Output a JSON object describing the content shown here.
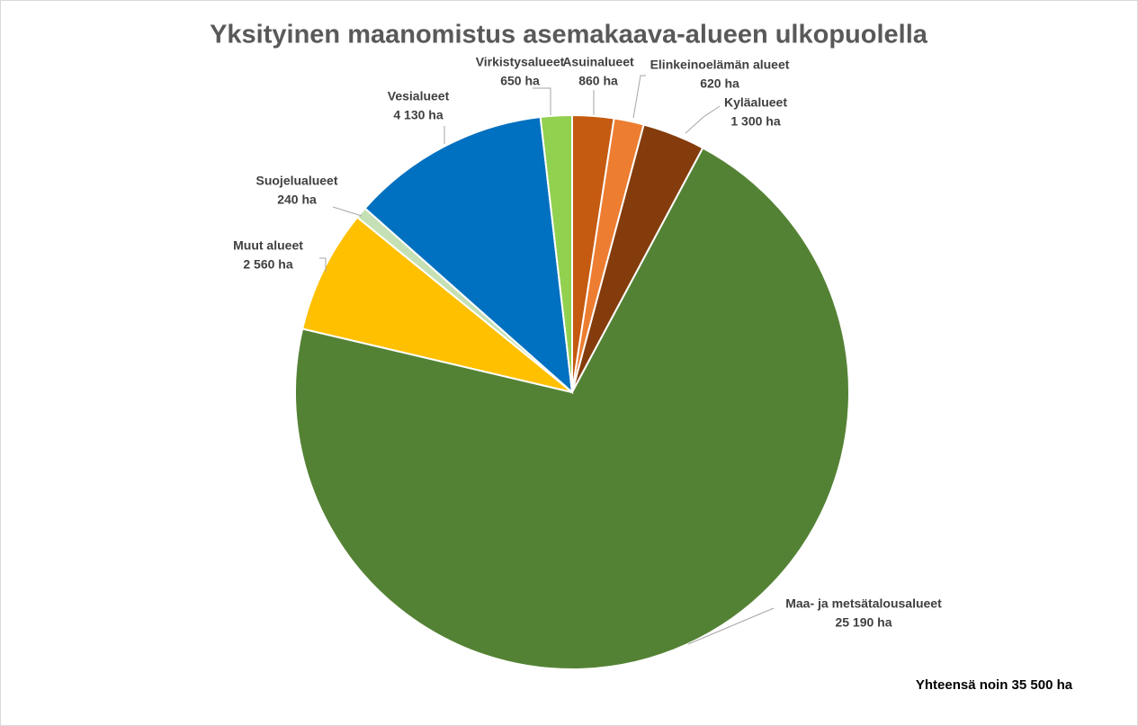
{
  "chart_data": {
    "type": "pie",
    "title": "Yksityinen maanomistus asemakaava-alueen ulkopuolella",
    "categories": [
      "Asuinalueet",
      "Elinkeinoelämän alueet",
      "Kyläalueet",
      "Maa- ja metsätalousalueet",
      "Muut alueet",
      "Suojelualueet",
      "Vesialueet",
      "Virkistysalueet"
    ],
    "values": [
      860,
      620,
      1300,
      25190,
      2560,
      240,
      4130,
      650
    ],
    "value_labels": [
      "860 ha",
      "620 ha",
      "1 300 ha",
      "25 190 ha",
      "2 560 ha",
      "240 ha",
      "4 130 ha",
      "650 ha"
    ],
    "colors": [
      "#c55a11",
      "#ed7d31",
      "#843c0c",
      "#548235",
      "#ffc000",
      "#c5e0b4",
      "#0070c0",
      "#92d050"
    ],
    "annotation": "Yhteensä noin 35 500 ha"
  }
}
